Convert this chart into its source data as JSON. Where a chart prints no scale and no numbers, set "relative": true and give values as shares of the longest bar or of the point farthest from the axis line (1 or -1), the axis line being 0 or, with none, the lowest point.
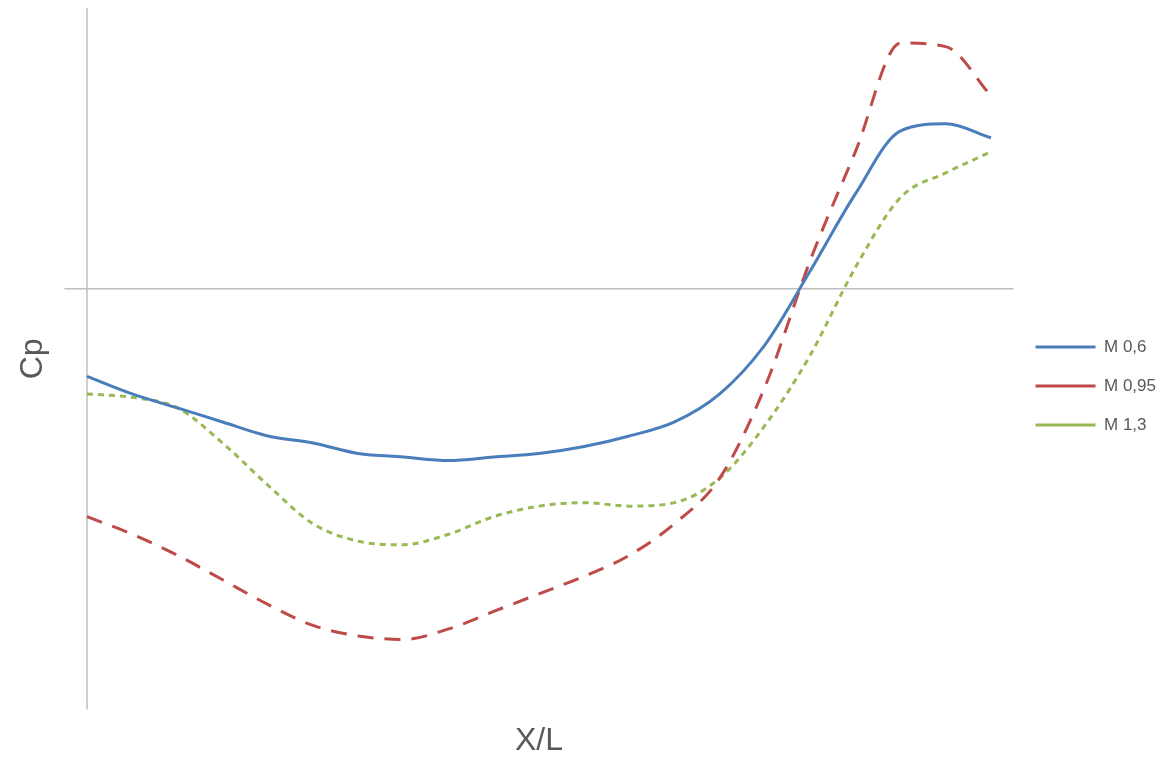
{
  "chart_data": {
    "type": "line",
    "xlabel": "X/L",
    "ylabel": "Cp",
    "relative": true,
    "legend": "right",
    "grid": false,
    "marker": "none",
    "categories": [
      null,
      null,
      null,
      null,
      null,
      null,
      null,
      null,
      null,
      null,
      null,
      null,
      null,
      null,
      null,
      null,
      null,
      null,
      null,
      null,
      null
    ],
    "series": [
      {
        "name": "M 0,6",
        "color": "#4a7ebb",
        "line_style": "solid",
        "values": [
          -0.25,
          -0.3,
          -0.34,
          -0.38,
          -0.42,
          -0.44,
          -0.47,
          -0.48,
          -0.49,
          -0.48,
          -0.47,
          -0.45,
          -0.42,
          -0.38,
          -0.3,
          -0.16,
          0.05,
          0.27,
          0.45,
          0.47,
          0.43
        ]
      },
      {
        "name": "M 0,95",
        "color": "#be4b48",
        "line_style": "dashed",
        "values": [
          -0.65,
          -0.7,
          -0.76,
          -0.83,
          -0.9,
          -0.96,
          -0.99,
          -1,
          -0.97,
          -0.92,
          -0.87,
          -0.82,
          -0.76,
          -0.67,
          -0.54,
          -0.28,
          0.08,
          0.39,
          0.7,
          0.69,
          0.55
        ]
      },
      {
        "name": "M 1,3",
        "color": "#98b954",
        "line_style": "dotted",
        "values": [
          -0.3,
          -0.31,
          -0.34,
          -0.44,
          -0.56,
          -0.67,
          -0.72,
          -0.73,
          -0.7,
          -0.65,
          -0.62,
          -0.61,
          -0.62,
          -0.61,
          -0.54,
          -0.39,
          -0.19,
          0.06,
          0.26,
          0.33,
          0.39
        ]
      }
    ]
  }
}
